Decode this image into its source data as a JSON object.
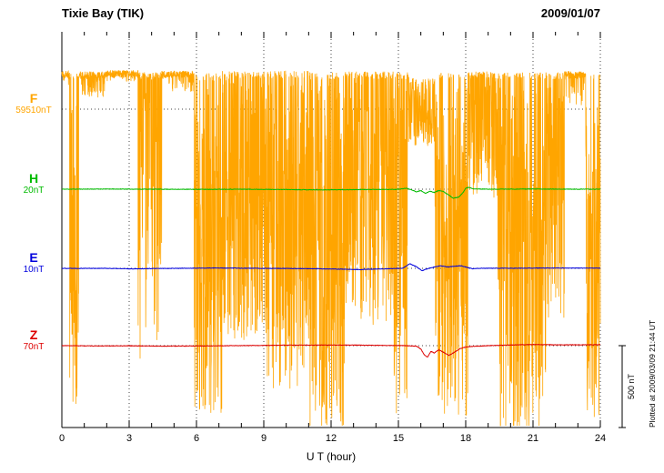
{
  "header": {
    "station": "Tixie Bay (TIK)",
    "date": "2009/01/07"
  },
  "xaxis": {
    "label": "U T (hour)",
    "ticks": [
      0,
      3,
      6,
      9,
      12,
      15,
      18,
      21,
      24
    ],
    "minor_step_hours": 1,
    "range": [
      0,
      24
    ]
  },
  "scale_bar": {
    "label": "500 nT",
    "nT": 500
  },
  "footer_note": "Plotted at 2009/03/09 21:44 UT",
  "chart_data": {
    "type": "line",
    "title": "Tixie Bay (TIK) magnetogram",
    "subtitle": "2009/01/07",
    "xlabel": "U T (hour)",
    "x_range": [
      0,
      24
    ],
    "x_tick_labels": [
      0,
      3,
      6,
      9,
      12,
      15,
      18,
      21,
      24
    ],
    "grid": "dotted vertical lines every 3 hours, dotted horizontal baseline per component",
    "legend_position": "left margin labels",
    "scale_bar_nT": 500,
    "envelope_units": "nT offsets relative to component baseline; dips measured down from quiet level",
    "series": [
      {
        "name": "F",
        "label": "F",
        "value_label": "59510nT",
        "baseline_nT": 59510,
        "color": "#FFA500",
        "render": "noise",
        "seed": 20090107,
        "step_hours": 0.008,
        "envelope": [
          {
            "from": 0,
            "to": 0.35,
            "p": 0.18,
            "dip_min": 10,
            "dip_max": 90,
            "quiet": 235
          },
          {
            "from": 0.35,
            "to": 0.75,
            "p": 0.85,
            "dip_min": 150,
            "dip_max": 2080,
            "quiet": 220
          },
          {
            "from": 0.75,
            "to": 1.9,
            "p": 0.4,
            "dip_min": 15,
            "dip_max": 160,
            "quiet": 230
          },
          {
            "from": 1.9,
            "to": 3.4,
            "p": 0.15,
            "dip_min": 10,
            "dip_max": 70,
            "quiet": 238
          },
          {
            "from": 3.4,
            "to": 4.45,
            "p": 0.45,
            "dip_min": 40,
            "dip_max": 1750,
            "quiet": 225
          },
          {
            "from": 4.45,
            "to": 5.9,
            "p": 0.25,
            "dip_min": 10,
            "dip_max": 130,
            "quiet": 235
          },
          {
            "from": 5.9,
            "to": 7.15,
            "p": 0.82,
            "dip_min": 80,
            "dip_max": 2090,
            "quiet": 220
          },
          {
            "from": 7.15,
            "to": 9.0,
            "p": 0.75,
            "dip_min": 40,
            "dip_max": 1650,
            "quiet": 235
          },
          {
            "from": 9.0,
            "to": 11.0,
            "p": 0.8,
            "dip_min": 40,
            "dip_max": 1950,
            "quiet": 235
          },
          {
            "from": 11.0,
            "to": 12.6,
            "p": 0.85,
            "dip_min": 80,
            "dip_max": 2200,
            "quiet": 225
          },
          {
            "from": 12.6,
            "to": 14.8,
            "p": 0.72,
            "dip_min": 40,
            "dip_max": 1550,
            "quiet": 230
          },
          {
            "from": 14.8,
            "to": 15.45,
            "p": 0.8,
            "dip_min": 80,
            "dip_max": 2100,
            "quiet": 225
          },
          {
            "from": 15.45,
            "to": 16.6,
            "p": 0.9,
            "dip_min": 15,
            "dip_max": 430,
            "quiet": 200
          },
          {
            "from": 16.6,
            "to": 18.1,
            "p": 0.8,
            "dip_min": 80,
            "dip_max": 2120,
            "quiet": 225
          },
          {
            "from": 18.1,
            "to": 19.4,
            "p": 0.6,
            "dip_min": 25,
            "dip_max": 820,
            "quiet": 230
          },
          {
            "from": 19.4,
            "to": 21.6,
            "p": 0.85,
            "dip_min": 80,
            "dip_max": 2230,
            "quiet": 225
          },
          {
            "from": 21.6,
            "to": 22.4,
            "p": 0.7,
            "dip_min": 80,
            "dip_max": 1500,
            "quiet": 225
          },
          {
            "from": 22.4,
            "to": 23.35,
            "p": 0.28,
            "dip_min": 10,
            "dip_max": 210,
            "quiet": 232
          },
          {
            "from": 23.35,
            "to": 24.01,
            "p": 0.9,
            "dip_min": 150,
            "dip_max": 2120,
            "quiet": 215
          }
        ]
      },
      {
        "name": "H",
        "label": "H",
        "value_label": "20nT",
        "baseline_nT": 20,
        "color": "#00BB00",
        "render": "keypoints",
        "seed": 11,
        "points": [
          [
            0,
            0
          ],
          [
            2,
            1
          ],
          [
            4,
            0
          ],
          [
            6,
            -1
          ],
          [
            8,
            0
          ],
          [
            10,
            -2
          ],
          [
            11.5,
            -4
          ],
          [
            12.5,
            -3
          ],
          [
            13.5,
            -2
          ],
          [
            15.0,
            -1
          ],
          [
            15.35,
            6
          ],
          [
            15.6,
            -4
          ],
          [
            15.8,
            -16
          ],
          [
            16.0,
            -8
          ],
          [
            16.2,
            -26
          ],
          [
            16.4,
            -12
          ],
          [
            16.6,
            -20
          ],
          [
            16.8,
            -8
          ],
          [
            17.0,
            -14
          ],
          [
            17.2,
            -32
          ],
          [
            17.45,
            -55
          ],
          [
            17.7,
            -48
          ],
          [
            17.9,
            -18
          ],
          [
            18.0,
            6
          ],
          [
            18.15,
            12
          ],
          [
            18.3,
            2
          ],
          [
            19,
            0
          ],
          [
            21,
            1
          ],
          [
            23,
            0
          ],
          [
            24,
            0
          ]
        ]
      },
      {
        "name": "E",
        "label": "E",
        "value_label": "10nT",
        "baseline_nT": 10,
        "color": "#0000DD",
        "render": "keypoints",
        "seed": 22,
        "points": [
          [
            0,
            0
          ],
          [
            2,
            0
          ],
          [
            3,
            -3
          ],
          [
            5,
            0
          ],
          [
            7,
            2
          ],
          [
            9,
            0
          ],
          [
            11,
            -2
          ],
          [
            12.5,
            -5
          ],
          [
            13.2,
            -8
          ],
          [
            14,
            -4
          ],
          [
            15.2,
            0
          ],
          [
            15.5,
            28
          ],
          [
            15.8,
            10
          ],
          [
            16.05,
            -15
          ],
          [
            16.3,
            -2
          ],
          [
            16.6,
            8
          ],
          [
            16.9,
            16
          ],
          [
            17.2,
            8
          ],
          [
            17.5,
            13
          ],
          [
            17.8,
            16
          ],
          [
            18.05,
            6
          ],
          [
            18.3,
            -3
          ],
          [
            18.6,
            0
          ],
          [
            20,
            1
          ],
          [
            22,
            2
          ],
          [
            24,
            1
          ]
        ]
      },
      {
        "name": "Z",
        "label": "Z",
        "value_label": "70nT",
        "baseline_nT": 70,
        "color": "#DD0000",
        "render": "keypoints",
        "seed": 33,
        "points": [
          [
            0,
            0
          ],
          [
            1.5,
            -2
          ],
          [
            3,
            -1
          ],
          [
            4.5,
            -3
          ],
          [
            6,
            -2
          ],
          [
            8,
            0
          ],
          [
            10,
            3
          ],
          [
            12,
            4
          ],
          [
            13.5,
            3
          ],
          [
            15.3,
            0
          ],
          [
            15.8,
            -3
          ],
          [
            16.0,
            -20
          ],
          [
            16.15,
            -55
          ],
          [
            16.3,
            -70
          ],
          [
            16.45,
            -35
          ],
          [
            16.6,
            -45
          ],
          [
            16.8,
            -25
          ],
          [
            17.0,
            -40
          ],
          [
            17.25,
            -60
          ],
          [
            17.5,
            -40
          ],
          [
            17.75,
            -18
          ],
          [
            18.0,
            -8
          ],
          [
            18.4,
            -4
          ],
          [
            19,
            0
          ],
          [
            20,
            4
          ],
          [
            21,
            7
          ],
          [
            22,
            5
          ],
          [
            23,
            5
          ],
          [
            24,
            6
          ]
        ]
      }
    ]
  }
}
